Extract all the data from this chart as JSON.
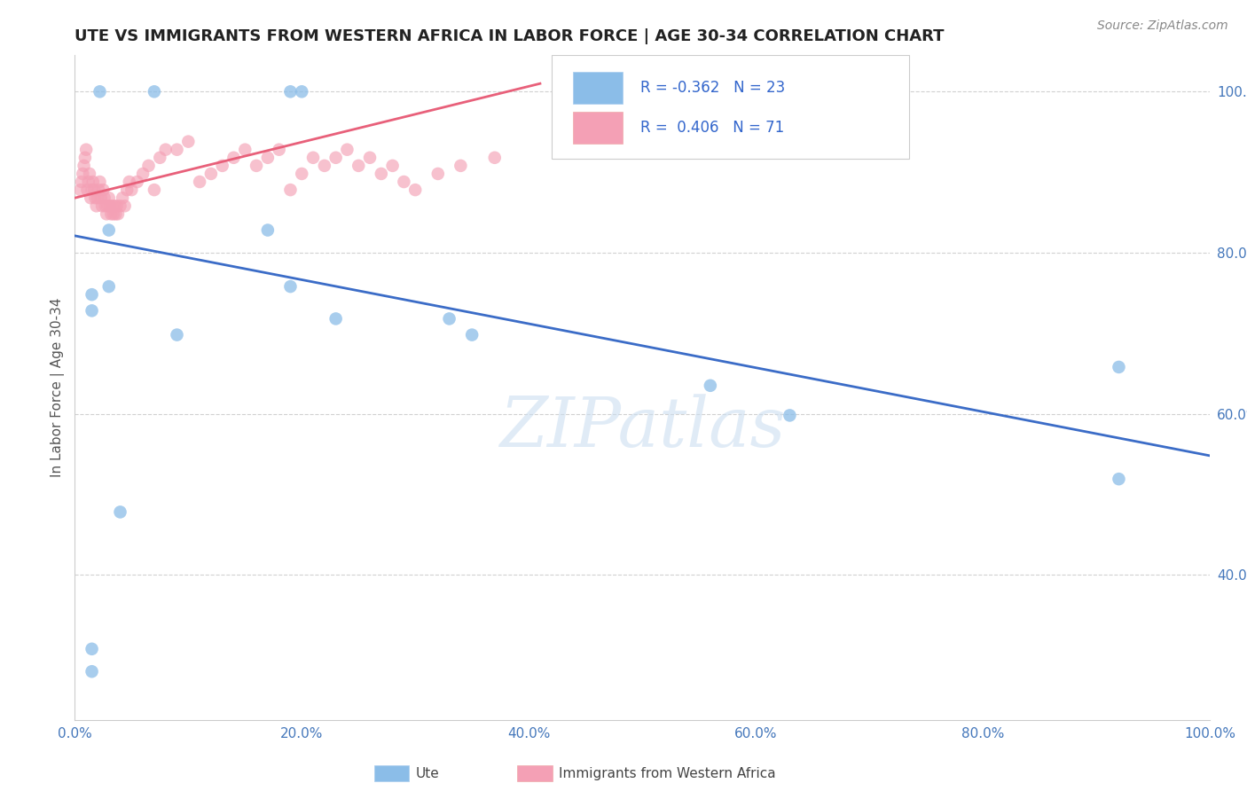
{
  "title": "UTE VS IMMIGRANTS FROM WESTERN AFRICA IN LABOR FORCE | AGE 30-34 CORRELATION CHART",
  "source": "Source: ZipAtlas.com",
  "ylabel": "In Labor Force | Age 30-34",
  "xlim": [
    0.0,
    1.0
  ],
  "ylim": [
    0.22,
    1.045
  ],
  "yticks": [
    0.4,
    0.6,
    0.8,
    1.0
  ],
  "ytick_labels": [
    "40.0%",
    "60.0%",
    "80.0%",
    "100.0%"
  ],
  "xticks": [
    0.0,
    0.2,
    0.4,
    0.6,
    0.8,
    1.0
  ],
  "xtick_labels": [
    "0.0%",
    "20.0%",
    "40.0%",
    "60.0%",
    "80.0%",
    "100.0%"
  ],
  "blue_R": -0.362,
  "blue_N": 23,
  "pink_R": 0.406,
  "pink_N": 71,
  "blue_color": "#8BBDE8",
  "pink_color": "#F4A0B5",
  "blue_line_color": "#3B6CC7",
  "pink_line_color": "#E8607A",
  "watermark": "ZIPatlas",
  "legend_blue_label": "Ute",
  "legend_pink_label": "Immigrants from Western Africa",
  "blue_line_x0": 0.0,
  "blue_line_y0": 0.821,
  "blue_line_x1": 1.0,
  "blue_line_y1": 0.548,
  "pink_line_x0": 0.0,
  "pink_line_y0": 0.868,
  "pink_line_x1": 0.41,
  "pink_line_y1": 1.01,
  "blue_x": [
    0.022,
    0.07,
    0.19,
    0.2,
    0.45,
    0.47,
    0.03,
    0.17,
    0.03,
    0.19,
    0.23,
    0.09,
    0.33,
    0.35,
    0.56,
    0.63,
    0.92,
    0.92,
    0.04,
    0.015,
    0.015,
    0.015,
    0.015
  ],
  "blue_y": [
    1.0,
    1.0,
    1.0,
    1.0,
    1.0,
    1.0,
    0.828,
    0.828,
    0.758,
    0.758,
    0.718,
    0.698,
    0.718,
    0.698,
    0.635,
    0.598,
    0.658,
    0.519,
    0.478,
    0.748,
    0.728,
    0.308,
    0.28
  ],
  "pink_x": [
    0.005,
    0.006,
    0.007,
    0.008,
    0.009,
    0.01,
    0.011,
    0.012,
    0.013,
    0.014,
    0.015,
    0.016,
    0.017,
    0.018,
    0.019,
    0.02,
    0.021,
    0.022,
    0.023,
    0.024,
    0.025,
    0.026,
    0.027,
    0.028,
    0.029,
    0.03,
    0.031,
    0.032,
    0.033,
    0.034,
    0.035,
    0.036,
    0.037,
    0.038,
    0.04,
    0.042,
    0.044,
    0.046,
    0.048,
    0.05,
    0.055,
    0.06,
    0.065,
    0.07,
    0.075,
    0.08,
    0.09,
    0.1,
    0.11,
    0.12,
    0.13,
    0.14,
    0.15,
    0.16,
    0.17,
    0.18,
    0.19,
    0.2,
    0.21,
    0.22,
    0.23,
    0.24,
    0.25,
    0.26,
    0.27,
    0.28,
    0.29,
    0.3,
    0.32,
    0.34,
    0.37
  ],
  "pink_y": [
    0.878,
    0.888,
    0.898,
    0.908,
    0.918,
    0.928,
    0.878,
    0.888,
    0.898,
    0.868,
    0.878,
    0.888,
    0.878,
    0.868,
    0.858,
    0.868,
    0.878,
    0.888,
    0.868,
    0.858,
    0.878,
    0.868,
    0.858,
    0.848,
    0.858,
    0.868,
    0.858,
    0.848,
    0.858,
    0.848,
    0.858,
    0.848,
    0.858,
    0.848,
    0.858,
    0.868,
    0.858,
    0.878,
    0.888,
    0.878,
    0.888,
    0.898,
    0.908,
    0.878,
    0.918,
    0.928,
    0.928,
    0.938,
    0.888,
    0.898,
    0.908,
    0.918,
    0.928,
    0.908,
    0.918,
    0.928,
    0.878,
    0.898,
    0.918,
    0.908,
    0.918,
    0.928,
    0.908,
    0.918,
    0.898,
    0.908,
    0.888,
    0.878,
    0.898,
    0.908,
    0.918
  ]
}
